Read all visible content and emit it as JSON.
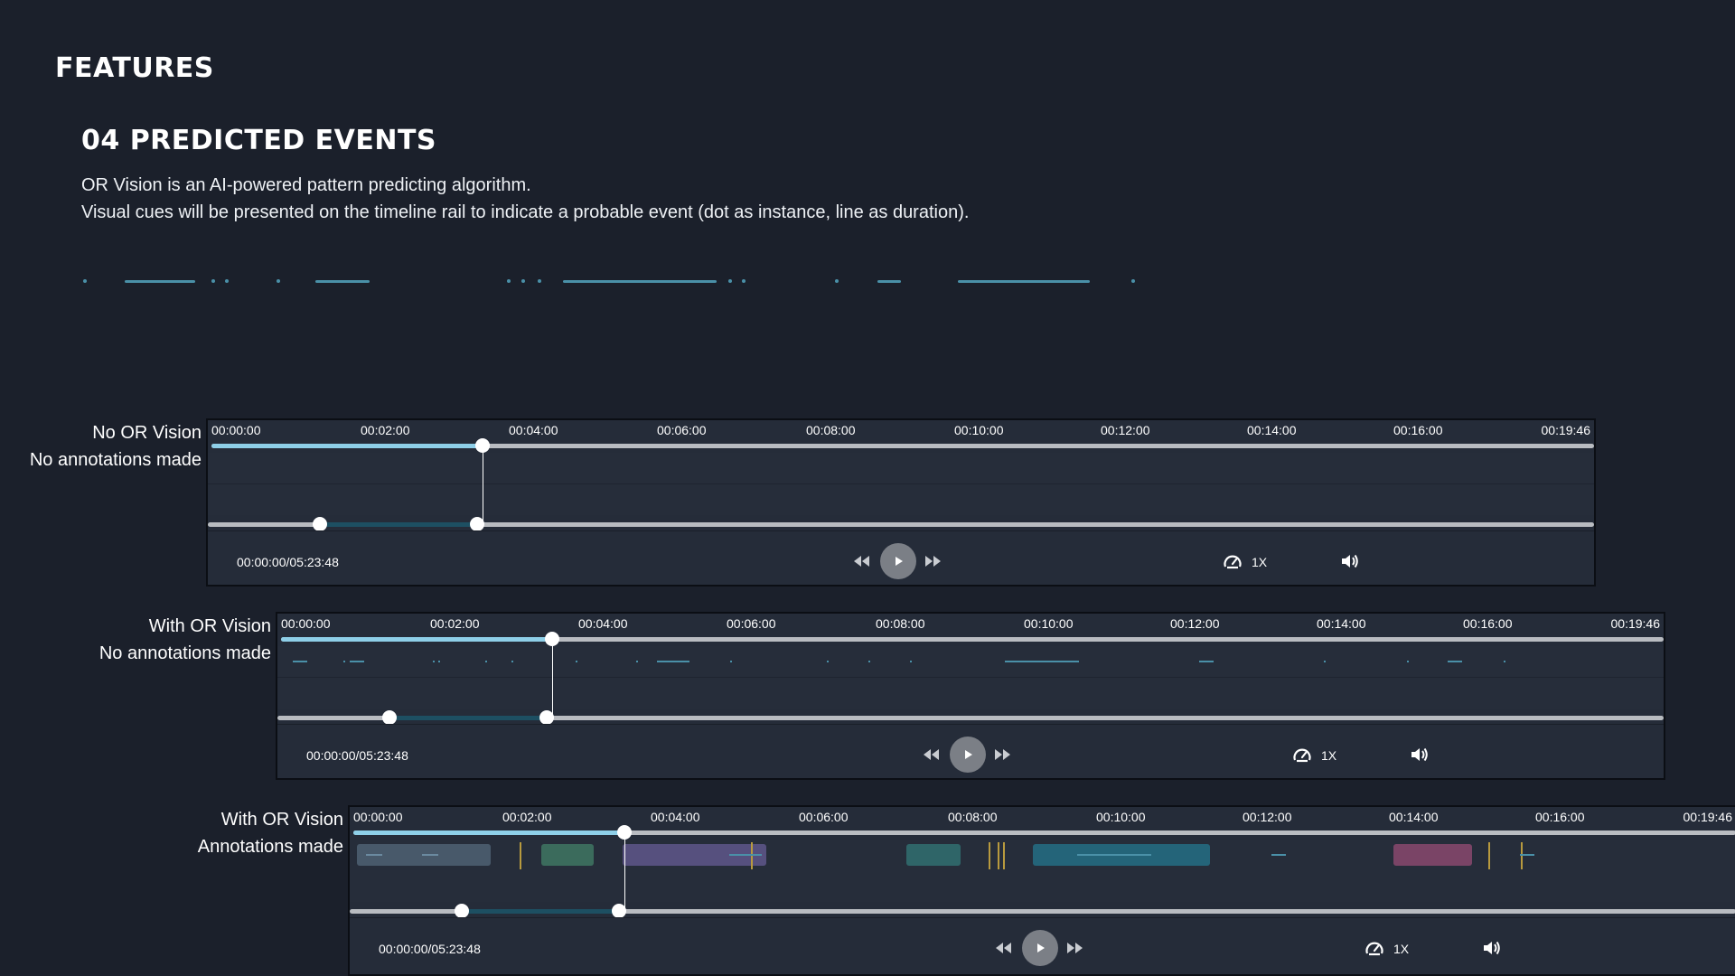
{
  "section_title": "FEATURES",
  "feature": {
    "heading": "04 PREDICTED EVENTS",
    "description": [
      "OR Vision is an AI-powered pattern predicting algorithm.",
      "Visual cues will be presented on the timeline rail to indicate a probable event (dot as instance, line as duration)."
    ]
  },
  "colors": {
    "background": "#1b202b",
    "player_bg": "#252c39",
    "progress_fill": "#8ecfe8",
    "track": "#b9bcc1",
    "event_cue": "#4a90a8",
    "range_selection": "#1d4f62",
    "annotation_marker": "#b89a3e"
  },
  "tick_labels": [
    "00:00:00",
    "00:02:00",
    "00:04:00",
    "00:06:00",
    "00:08:00",
    "00:10:00",
    "00:12:00",
    "00:14:00",
    "00:16:00",
    "00:19:46"
  ],
  "players": [
    {
      "label_line1": "No OR Vision",
      "label_line2": "No annotations made",
      "time_readout": "00:00:00/05:23:48",
      "speed": "1X",
      "progress": 0.196,
      "range_start": 0.081,
      "range_end": 0.195
    },
    {
      "label_line1": "With OR Vision",
      "label_line2": "No annotations made",
      "time_readout": "00:00:00/05:23:48",
      "speed": "1X",
      "progress": 0.196,
      "range_start": 0.081,
      "range_end": 0.195
    },
    {
      "label_line1": "With OR Vision",
      "label_line2": "Annotations made",
      "time_readout": "00:00:00/05:23:48",
      "speed": "1X",
      "progress": 0.196,
      "range_start": 0.081,
      "range_end": 0.195
    }
  ],
  "icons": {
    "rewind": "rewind-icon",
    "play": "play-icon",
    "fast_forward": "fast-forward-icon",
    "speed": "speedometer-icon",
    "volume": "volume-icon"
  }
}
